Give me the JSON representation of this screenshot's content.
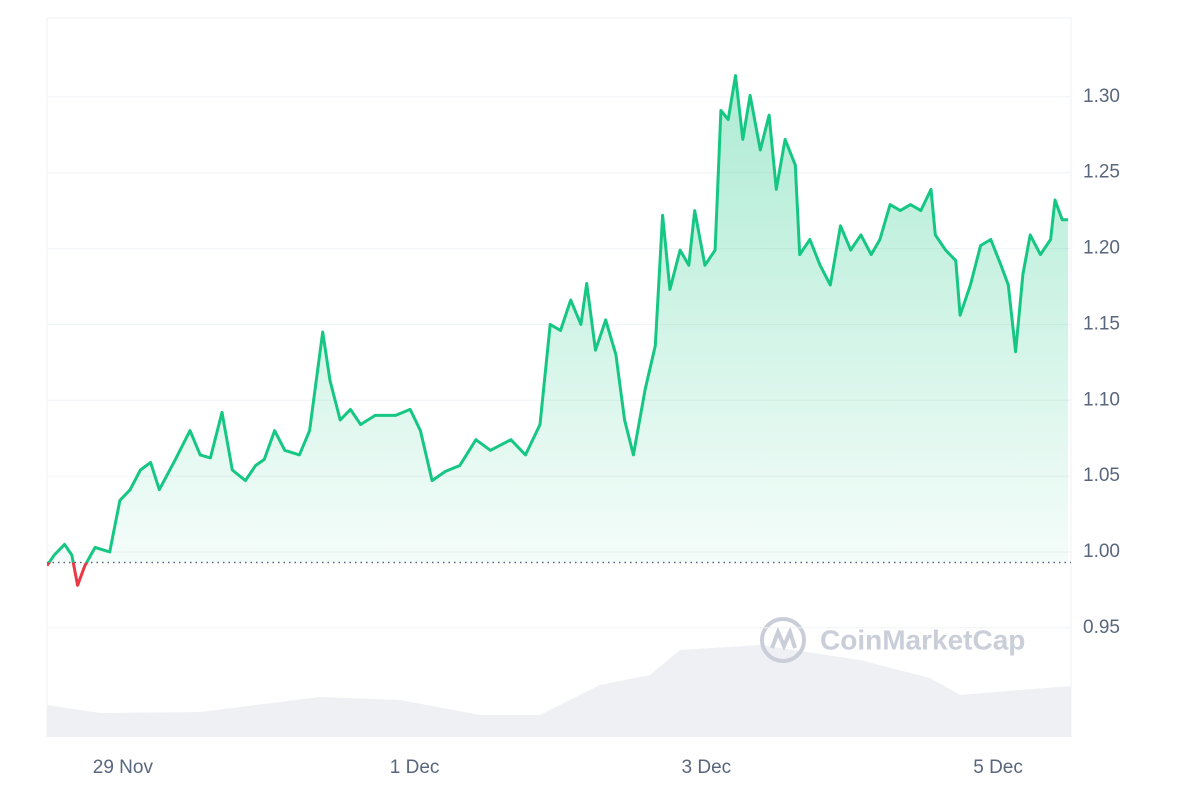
{
  "chart_data": {
    "type": "line",
    "watermark": "CoinMarketCap",
    "x": [
      0.48,
      0.53,
      0.6,
      0.65,
      0.69,
      0.74,
      0.81,
      0.91,
      0.98,
      1.05,
      1.12,
      1.19,
      1.25,
      1.36,
      1.46,
      1.53,
      1.6,
      1.68,
      1.75,
      1.84,
      1.91,
      1.97,
      2.04,
      2.11,
      2.21,
      2.28,
      2.37,
      2.42,
      2.49,
      2.56,
      2.63,
      2.73,
      2.87,
      2.97,
      3.04,
      3.12,
      3.21,
      3.31,
      3.42,
      3.52,
      3.66,
      3.76,
      3.86,
      3.93,
      4.0,
      4.07,
      4.14,
      4.18,
      4.24,
      4.31,
      4.38,
      4.44,
      4.5,
      4.58,
      4.65,
      4.7,
      4.75,
      4.82,
      4.88,
      4.92,
      4.99,
      5.06,
      5.1,
      5.15,
      5.2,
      5.25,
      5.3,
      5.37,
      5.43,
      5.48,
      5.54,
      5.61,
      5.64,
      5.71,
      5.78,
      5.85,
      5.92,
      5.99,
      6.06,
      6.13,
      6.19,
      6.26,
      6.33,
      6.4,
      6.47,
      6.54,
      6.57,
      6.64,
      6.71,
      6.74,
      6.81,
      6.88,
      6.95,
      7.02,
      7.07,
      7.12,
      7.17,
      7.22,
      7.29,
      7.36,
      7.39,
      7.44,
      7.48
    ],
    "series": [
      {
        "color": "#16c784",
        "below_color": "#ea3943",
        "values": [
          0.991,
          0.998,
          1.005,
          0.998,
          0.978,
          0.991,
          1.003,
          1.0,
          1.034,
          1.041,
          1.054,
          1.059,
          1.041,
          1.061,
          1.08,
          1.064,
          1.062,
          1.092,
          1.054,
          1.047,
          1.057,
          1.061,
          1.08,
          1.067,
          1.064,
          1.08,
          1.145,
          1.113,
          1.087,
          1.094,
          1.084,
          1.09,
          1.09,
          1.094,
          1.08,
          1.047,
          1.053,
          1.057,
          1.074,
          1.067,
          1.074,
          1.064,
          1.084,
          1.15,
          1.146,
          1.166,
          1.15,
          1.177,
          1.133,
          1.153,
          1.13,
          1.087,
          1.064,
          1.107,
          1.136,
          1.222,
          1.173,
          1.199,
          1.189,
          1.225,
          1.189,
          1.199,
          1.291,
          1.285,
          1.314,
          1.272,
          1.301,
          1.265,
          1.288,
          1.239,
          1.272,
          1.255,
          1.196,
          1.206,
          1.189,
          1.176,
          1.215,
          1.199,
          1.209,
          1.196,
          1.206,
          1.229,
          1.225,
          1.229,
          1.225,
          1.239,
          1.209,
          1.199,
          1.192,
          1.156,
          1.176,
          1.202,
          1.206,
          1.189,
          1.176,
          1.132,
          1.183,
          1.209,
          1.196,
          1.206,
          1.232,
          1.219,
          1.219
        ]
      }
    ],
    "baseline": 0.993,
    "xlim": [
      0.48,
      7.5
    ],
    "xticks": [
      {
        "value": 1,
        "label": "29 Nov"
      },
      {
        "value": 3,
        "label": "1 Dec"
      },
      {
        "value": 5,
        "label": "3 Dec"
      },
      {
        "value": 7,
        "label": "5 Dec"
      }
    ],
    "ylim": [
      0.878,
      1.352
    ],
    "yticks": [
      0.95,
      {
        "value": 1,
        "label": "1.00"
      },
      1.05,
      {
        "value": 1.1,
        "label": "1.10"
      },
      1.15,
      {
        "value": 1.2,
        "label": "1.20"
      },
      1.25,
      {
        "value": 1.3,
        "label": "1.30"
      }
    ],
    "grid": true
  }
}
